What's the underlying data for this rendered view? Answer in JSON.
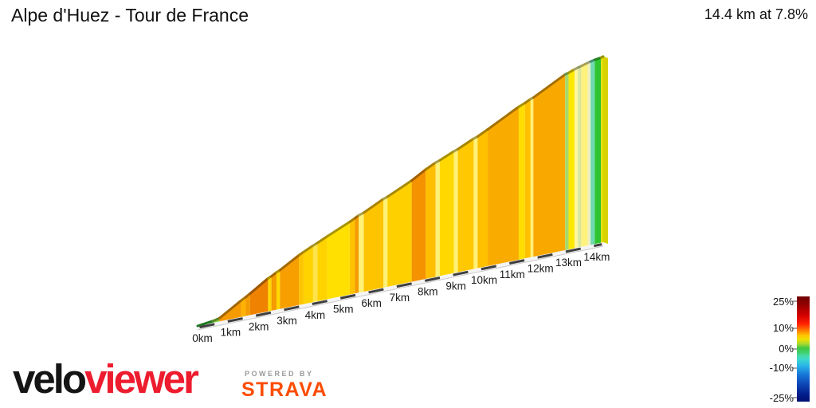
{
  "header": {
    "title": "Alpe d'Huez - Tour de France",
    "stats": "14.4 km at 7.8%"
  },
  "footer": {
    "brand_black": "velo",
    "brand_red": "viewer",
    "powered_by": "POWERED BY",
    "strava": "STRAVA",
    "brand_red_color": "#ED1C2E",
    "strava_orange": "#FC4C02"
  },
  "chart_data": {
    "type": "area",
    "title": "Alpe d'Huez - Tour de France",
    "subtitle": "14.4 km at 7.8%",
    "total_distance_km": 14.4,
    "avg_gradient_pct": 7.8,
    "x_unit": "km",
    "x_tick_labels": [
      "0km",
      "1km",
      "2km",
      "3km",
      "4km",
      "5km",
      "6km",
      "7km",
      "8km",
      "9km",
      "10km",
      "11km",
      "12km",
      "13km",
      "14km"
    ],
    "legend": {
      "labels": [
        "25%",
        "10%",
        "0%",
        "-10%",
        "-25%"
      ],
      "gradient_stops": [
        [
          "0",
          "#700000"
        ],
        [
          "8",
          "#960000"
        ],
        [
          "18",
          "#d40000"
        ],
        [
          "26",
          "#ff2000"
        ],
        [
          "32",
          "#ff7800"
        ],
        [
          "37",
          "#ffc400"
        ],
        [
          "41",
          "#ece000"
        ],
        [
          "45",
          "#aad830"
        ],
        [
          "49",
          "#40c840"
        ],
        [
          "53",
          "#3ecf68"
        ],
        [
          "56",
          "#47d8a0"
        ],
        [
          "60",
          "#3cd8d0"
        ],
        [
          "66",
          "#28b4e8"
        ],
        [
          "74",
          "#1878d8"
        ],
        [
          "84",
          "#0c44b4"
        ],
        [
          "93",
          "#041e8c"
        ],
        [
          "100",
          "#001070"
        ]
      ]
    },
    "segments_columns": [
      "from_km",
      "to_km",
      "grade_pct",
      "color"
    ],
    "segments": [
      [
        0.0,
        0.55,
        2.0,
        "#2FB52F"
      ],
      [
        0.55,
        0.78,
        4.0,
        "#8CCB3E"
      ],
      [
        0.78,
        1.55,
        10.5,
        "#F59B00"
      ],
      [
        1.55,
        1.7,
        9.0,
        "#FFB300"
      ],
      [
        1.7,
        1.86,
        10.5,
        "#F59B00"
      ],
      [
        1.86,
        2.5,
        11.0,
        "#EF8200"
      ],
      [
        2.5,
        2.62,
        7.0,
        "#FFD800"
      ],
      [
        2.62,
        2.8,
        10.0,
        "#F59B00"
      ],
      [
        2.8,
        2.92,
        7.0,
        "#FFD800"
      ],
      [
        2.92,
        3.6,
        10.0,
        "#F79E00"
      ],
      [
        3.6,
        3.76,
        8.5,
        "#FFC400"
      ],
      [
        3.76,
        4.1,
        8.0,
        "#FFD300"
      ],
      [
        4.1,
        4.25,
        7.0,
        "#FFE34D"
      ],
      [
        4.25,
        4.6,
        8.0,
        "#FFD300"
      ],
      [
        4.6,
        5.4,
        7.5,
        "#FFE000"
      ],
      [
        5.4,
        5.58,
        8.5,
        "#FFC300"
      ],
      [
        5.58,
        5.72,
        9.5,
        "#F59B00"
      ],
      [
        5.72,
        5.9,
        5.5,
        "#FFF176"
      ],
      [
        5.9,
        6.6,
        8.5,
        "#FFC400"
      ],
      [
        6.6,
        6.74,
        5.5,
        "#FFF176"
      ],
      [
        6.74,
        7.6,
        8.0,
        "#FFD000"
      ],
      [
        7.6,
        8.1,
        10.0,
        "#F49200"
      ],
      [
        8.1,
        8.45,
        8.5,
        "#FFBE00"
      ],
      [
        8.45,
        8.6,
        5.5,
        "#FFF176"
      ],
      [
        8.6,
        9.1,
        7.5,
        "#FFD800"
      ],
      [
        9.1,
        9.24,
        5.5,
        "#FFF176"
      ],
      [
        9.24,
        9.8,
        8.0,
        "#FFC800"
      ],
      [
        9.8,
        9.94,
        5.5,
        "#FFF176"
      ],
      [
        9.94,
        10.3,
        8.5,
        "#FFC000"
      ],
      [
        10.3,
        11.4,
        9.0,
        "#FAAB00"
      ],
      [
        11.4,
        11.62,
        7.0,
        "#FFDD00"
      ],
      [
        11.62,
        11.82,
        8.5,
        "#FFC000"
      ],
      [
        11.82,
        11.92,
        5.5,
        "#FFF176"
      ],
      [
        11.92,
        13.05,
        9.0,
        "#F9A800"
      ],
      [
        13.05,
        13.17,
        4.5,
        "#A5D86E"
      ],
      [
        13.17,
        13.38,
        6.5,
        "#FFE800"
      ],
      [
        13.38,
        13.5,
        5.0,
        "#FFF7A0"
      ],
      [
        13.5,
        13.62,
        4.5,
        "#D9E89E"
      ],
      [
        13.62,
        13.85,
        5.0,
        "#FFF27D"
      ],
      [
        13.85,
        13.95,
        4.5,
        "#EDF0C0"
      ],
      [
        13.95,
        14.1,
        3.5,
        "#6FD9B0"
      ],
      [
        14.1,
        14.32,
        2.5,
        "#2FC52F"
      ],
      [
        14.32,
        14.4,
        5.0,
        "#E3DC00"
      ]
    ]
  }
}
